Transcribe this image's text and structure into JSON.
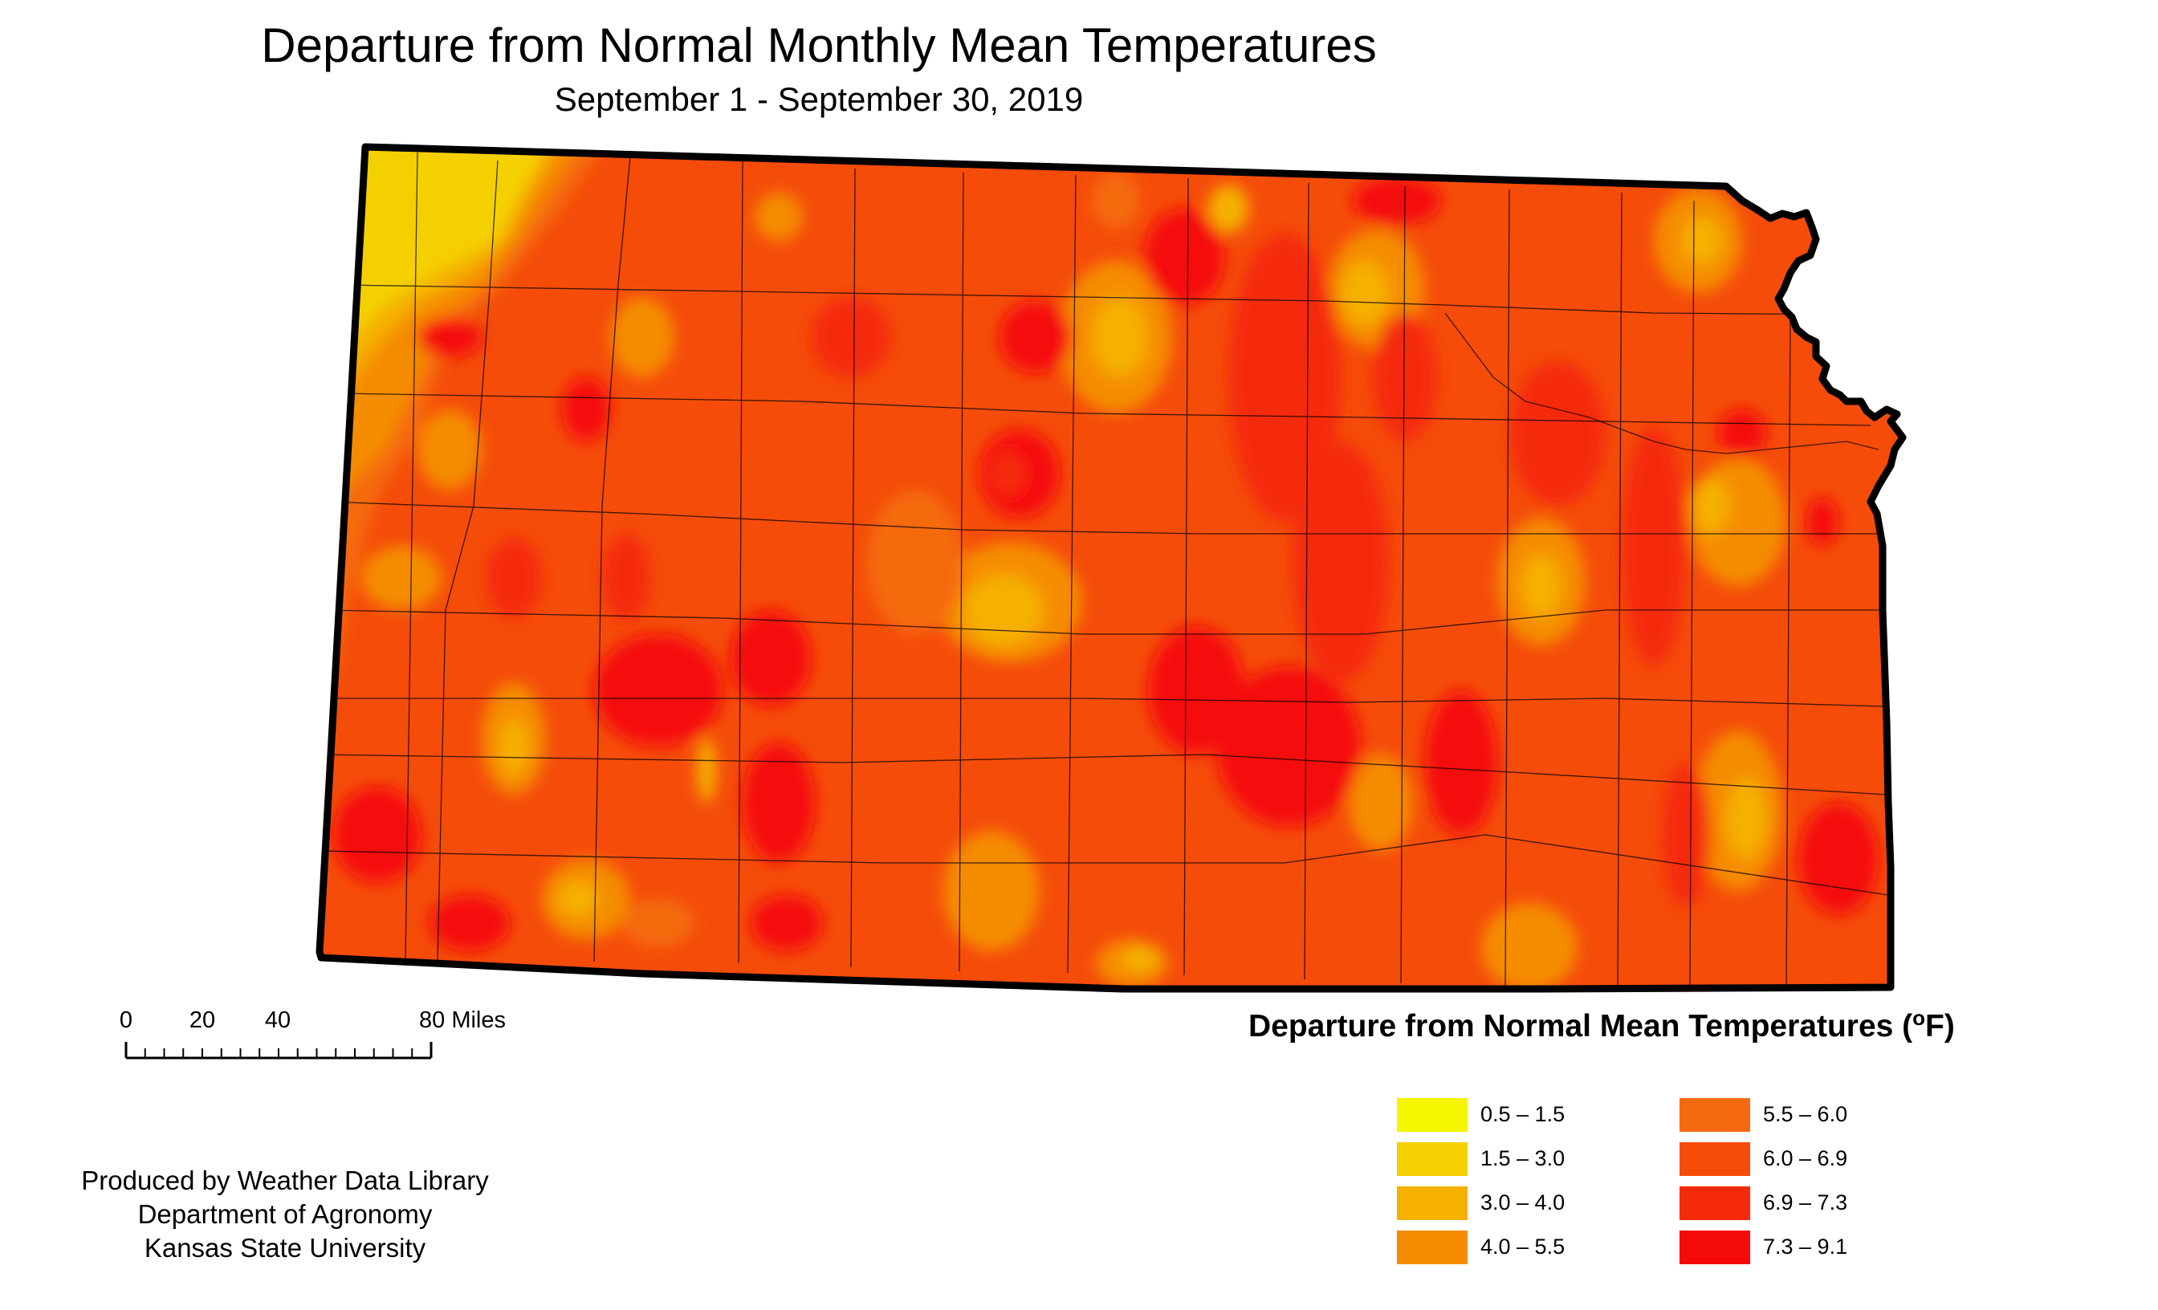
{
  "title": "Departure from Normal Monthly Mean Temperatures",
  "subtitle": "September 1 - September 30, 2019",
  "scale_bar": {
    "ticks": [
      "0",
      "20",
      "40",
      "80 Miles"
    ]
  },
  "legend": {
    "title": "Departure from Normal Mean Temperatures (",
    "title_unit_sup": "o",
    "title_unit": "F)",
    "items": [
      {
        "label": "0.5 – 1.5",
        "color": "#f5f500"
      },
      {
        "label": "1.5 – 3.0",
        "color": "#f5d000"
      },
      {
        "label": "3.0 – 4.0",
        "color": "#f5b000"
      },
      {
        "label": "4.0 – 5.5",
        "color": "#f58c00"
      },
      {
        "label": "5.5 – 6.0",
        "color": "#f56a10"
      },
      {
        "label": "6.0 – 6.9",
        "color": "#f54c0a"
      },
      {
        "label": "6.9 – 7.3",
        "color": "#f52a0a"
      },
      {
        "label": "7.3 – 9.1",
        "color": "#f50a0a"
      }
    ]
  },
  "credits": {
    "line1": "Produced by Weather Data Library",
    "line2": "Department of Agronomy",
    "line3": "Kansas State University"
  }
}
